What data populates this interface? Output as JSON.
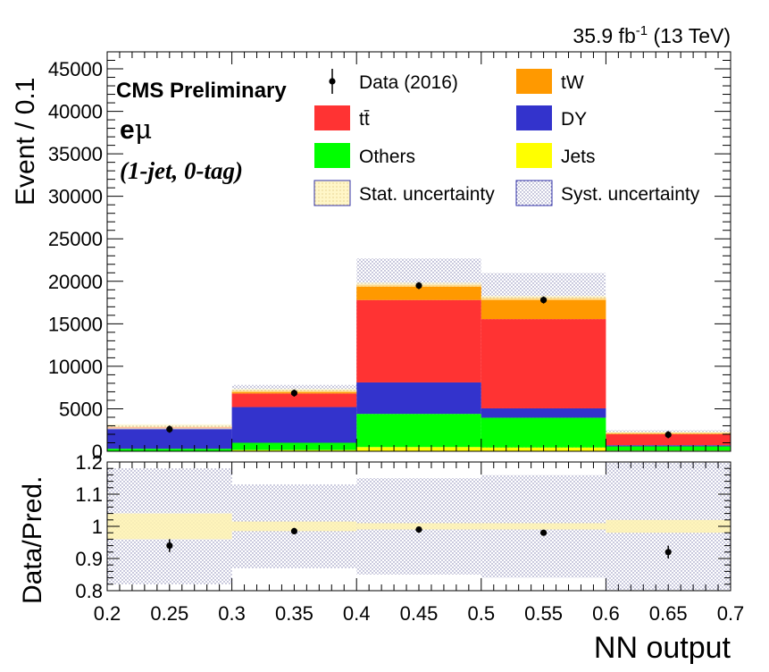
{
  "chart_data": {
    "type": "bar",
    "stacked": true,
    "lumi_label_main": "35.9 fb",
    "lumi_label_sup": "-1",
    "lumi_label_energy": " (13 TeV)",
    "cms_label": "CMS Preliminary",
    "channel_label_e": "e",
    "channel_label_mu": "μ",
    "category_label": "(1-jet, 0-tag)",
    "ylabel": "Event / 0.1",
    "xlabel": "NN output",
    "ratio_ylabel": "Data/Pred.",
    "bin_edges": [
      0.2,
      0.3,
      0.4,
      0.5,
      0.6,
      0.7
    ],
    "xlim": [
      0.2,
      0.7
    ],
    "ylim": [
      0,
      47000
    ],
    "ratio_ylim": [
      0.8,
      1.2
    ],
    "x_ticks": [
      "0.2",
      "0.25",
      "0.3",
      "0.35",
      "0.4",
      "0.45",
      "0.5",
      "0.55",
      "0.6",
      "0.65",
      "0.7"
    ],
    "y_ticks": [
      0,
      5000,
      10000,
      15000,
      20000,
      25000,
      30000,
      35000,
      40000,
      45000
    ],
    "ratio_ticks": [
      "0.8",
      "0.9",
      "1",
      "1.1",
      "1.2"
    ],
    "series": [
      {
        "name": "Jets",
        "color": "#ffff00",
        "values": [
          50,
          150,
          500,
          450,
          80
        ]
      },
      {
        "name": "Others",
        "color": "#00ff00",
        "values": [
          250,
          850,
          3900,
          3500,
          500
        ]
      },
      {
        "name": "DY",
        "color": "#3333cc",
        "values": [
          2400,
          4200,
          3700,
          1100,
          130
        ]
      },
      {
        "name": "tt̄",
        "color": "#ff3333",
        "values": [
          150,
          1600,
          9700,
          10500,
          1300
        ]
      },
      {
        "name": "tW",
        "color": "#ff9900",
        "values": [
          30,
          350,
          1800,
          2500,
          180
        ]
      }
    ],
    "data": {
      "name": "Data (2016)",
      "x": [
        0.25,
        0.35,
        0.45,
        0.55,
        0.65
      ],
      "y": [
        2600,
        6850,
        19500,
        17800,
        1950
      ]
    },
    "syst_band_top": [
      3100,
      7800,
      22700,
      21000,
      2500
    ],
    "stat_band_halfwidth": [
      300,
      200,
      250,
      250,
      120
    ],
    "ratio": {
      "x": [
        0.25,
        0.35,
        0.45,
        0.55,
        0.65
      ],
      "y": [
        0.94,
        0.985,
        0.99,
        0.98,
        0.92
      ],
      "err": [
        0.02,
        0.01,
        0.008,
        0.008,
        0.02
      ],
      "stat_band": [
        [
          0.96,
          1.04
        ],
        [
          0.985,
          1.015
        ],
        [
          0.99,
          1.01
        ],
        [
          0.99,
          1.01
        ],
        [
          0.98,
          1.02
        ]
      ],
      "syst_band": [
        [
          0.82,
          1.18
        ],
        [
          0.87,
          1.13
        ],
        [
          0.85,
          1.15
        ],
        [
          0.84,
          1.16
        ],
        [
          0.8,
          1.2
        ]
      ]
    },
    "legend": {
      "placement": "top-right",
      "entries": [
        {
          "label": "Data (2016)",
          "kind": "data"
        },
        {
          "label": "tW",
          "kind": "fill",
          "color": "#ff9900"
        },
        {
          "label": "tt̄",
          "kind": "fill",
          "color": "#ff3333"
        },
        {
          "label": "DY",
          "kind": "fill",
          "color": "#3333cc"
        },
        {
          "label": "Others",
          "kind": "fill",
          "color": "#00ff00"
        },
        {
          "label": "Jets",
          "kind": "fill",
          "color": "#ffff00"
        },
        {
          "label": "Stat. uncertainty",
          "kind": "stat"
        },
        {
          "label": "Syst. uncertainty",
          "kind": "syst"
        }
      ]
    }
  }
}
